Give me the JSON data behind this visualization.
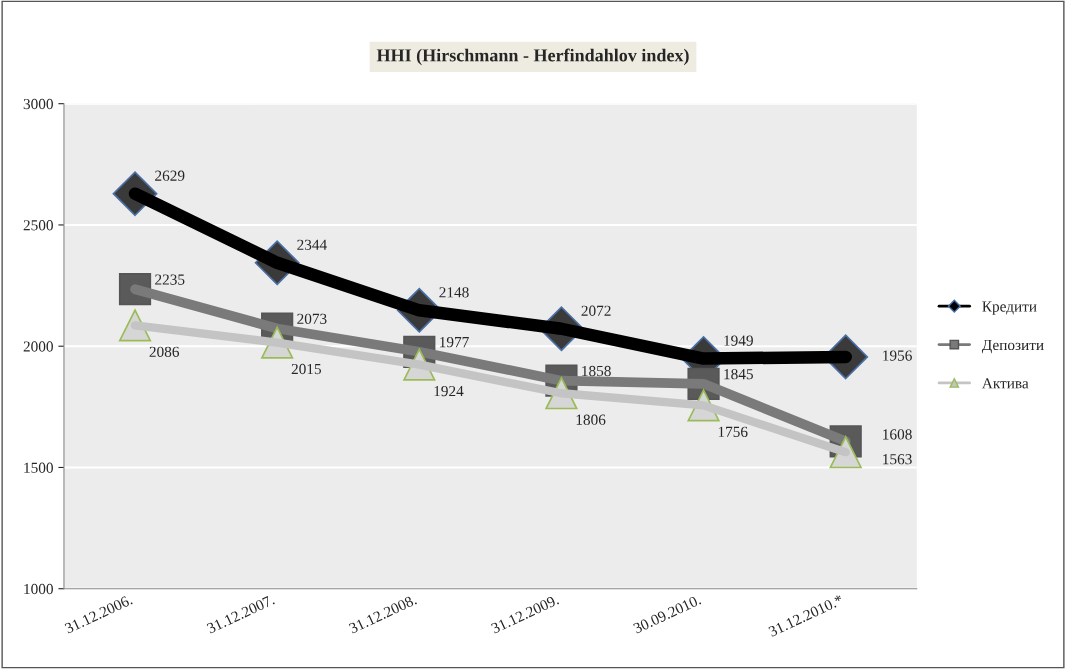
{
  "chart_data": {
    "type": "line",
    "title": "HHI (Hirschmann - Herfindahlov index)",
    "categories": [
      "31.12.2006.",
      "31.12.2007.",
      "31.12.2008.",
      "31.12.2009.",
      "30.09.2010.",
      "31.12.2010.*"
    ],
    "series": [
      {
        "name": "Кредити",
        "color": "#000000",
        "marker": "diamond",
        "values": [
          2629,
          2344,
          2148,
          2072,
          1949,
          1956
        ]
      },
      {
        "name": "Депозити",
        "color": "#7a7a7a",
        "marker": "square",
        "values": [
          2235,
          2073,
          1977,
          1858,
          1845,
          1608
        ]
      },
      {
        "name": "Актива",
        "color": "#c4c4c4",
        "marker": "triangle",
        "values": [
          2086,
          2015,
          1924,
          1806,
          1756,
          1563
        ]
      }
    ],
    "ylim": [
      1000,
      3000
    ],
    "yticks": [
      1000,
      1500,
      2000,
      2500,
      3000
    ],
    "grid": "y",
    "legend": "right",
    "data_labels": true
  }
}
